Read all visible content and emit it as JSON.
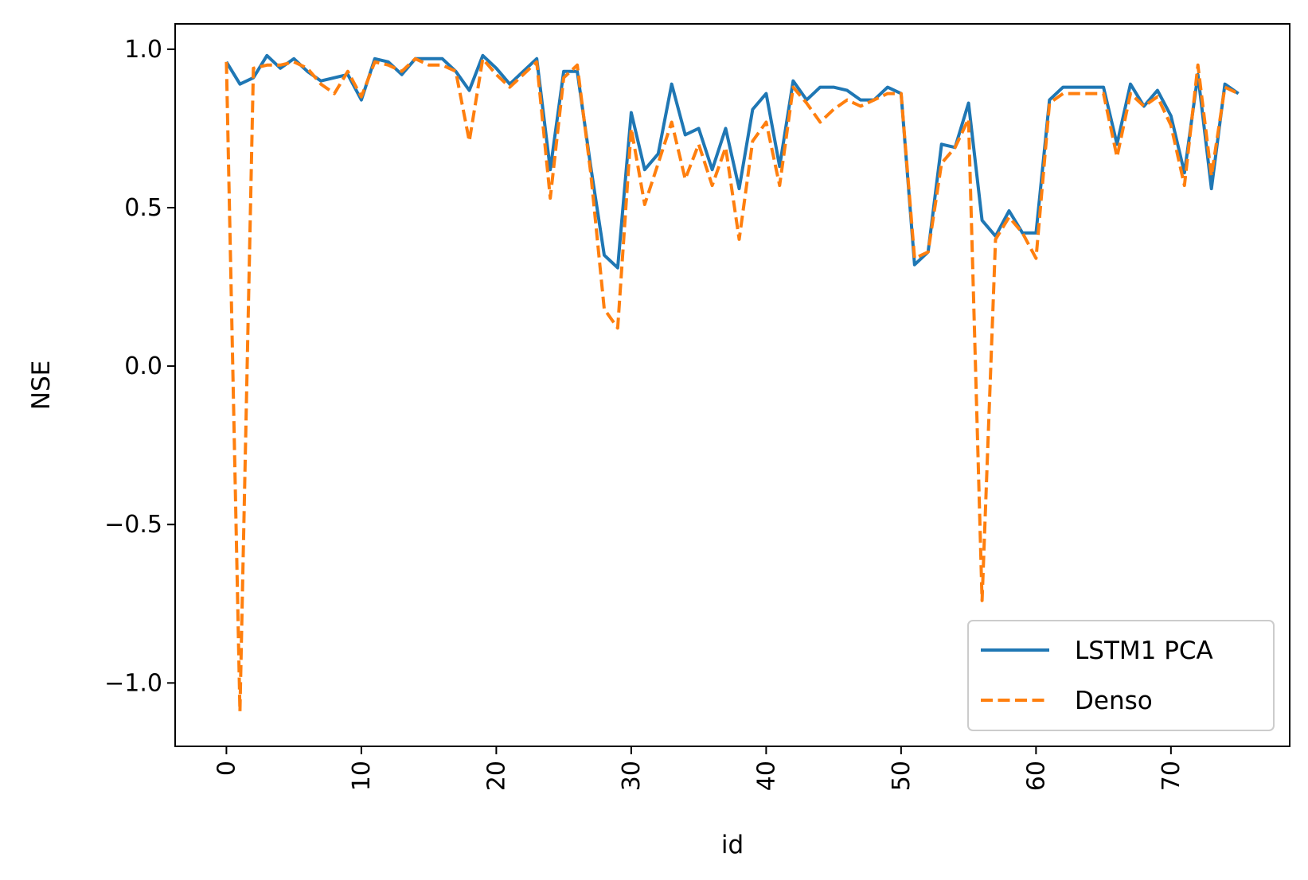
{
  "chart_data": {
    "type": "line",
    "title": "",
    "xlabel": "id",
    "ylabel": "NSE",
    "xlim": [
      -3.8,
      78.8
    ],
    "ylim": [
      -1.2,
      1.08
    ],
    "xticks": [
      0,
      10,
      20,
      30,
      40,
      50,
      60,
      70
    ],
    "xtick_labels": [
      "0",
      "10",
      "20",
      "30",
      "40",
      "50",
      "60",
      "70"
    ],
    "xtick_rotation": "vertical",
    "yticks": [
      1.0,
      0.5,
      0.0,
      -0.5,
      -1.0
    ],
    "ytick_labels": [
      "1.0",
      "0.5",
      "0.0",
      "−0.5",
      "−1.0"
    ],
    "grid": false,
    "legend": {
      "position": "lower-right"
    },
    "series": [
      {
        "name": "LSTM1 PCA",
        "color": "#1f77b4",
        "style": "solid",
        "values": [
          0.96,
          0.89,
          0.91,
          0.98,
          0.94,
          0.97,
          0.93,
          0.9,
          0.91,
          0.92,
          0.84,
          0.97,
          0.96,
          0.92,
          0.97,
          0.97,
          0.97,
          0.93,
          0.87,
          0.98,
          0.94,
          0.89,
          0.93,
          0.97,
          0.62,
          0.93,
          0.93,
          0.63,
          0.35,
          0.31,
          0.8,
          0.62,
          0.67,
          0.89,
          0.73,
          0.75,
          0.62,
          0.75,
          0.56,
          0.81,
          0.86,
          0.63,
          0.9,
          0.84,
          0.88,
          0.88,
          0.87,
          0.84,
          0.84,
          0.88,
          0.86,
          0.32,
          0.36,
          0.7,
          0.69,
          0.83,
          0.46,
          0.41,
          0.49,
          0.42,
          0.42,
          0.84,
          0.88,
          0.88,
          0.88,
          0.88,
          0.7,
          0.89,
          0.82,
          0.87,
          0.79,
          0.61,
          0.92,
          0.56,
          0.89,
          0.86
        ]
      },
      {
        "name": "Denso",
        "color": "#ff7f0e",
        "style": "dashed",
        "values": [
          0.96,
          -1.09,
          0.94,
          0.95,
          0.95,
          0.96,
          0.94,
          0.89,
          0.86,
          0.93,
          0.85,
          0.96,
          0.95,
          0.93,
          0.97,
          0.95,
          0.95,
          0.93,
          0.71,
          0.97,
          0.92,
          0.88,
          0.92,
          0.96,
          0.53,
          0.91,
          0.95,
          0.61,
          0.18,
          0.12,
          0.75,
          0.51,
          0.64,
          0.77,
          0.59,
          0.7,
          0.57,
          0.69,
          0.4,
          0.71,
          0.77,
          0.57,
          0.88,
          0.83,
          0.77,
          0.81,
          0.84,
          0.82,
          0.84,
          0.86,
          0.86,
          0.34,
          0.36,
          0.64,
          0.69,
          0.78,
          -0.74,
          0.4,
          0.47,
          0.42,
          0.34,
          0.83,
          0.86,
          0.86,
          0.86,
          0.86,
          0.66,
          0.86,
          0.82,
          0.85,
          0.76,
          0.57,
          0.95,
          0.6,
          0.88,
          0.86
        ]
      }
    ]
  }
}
